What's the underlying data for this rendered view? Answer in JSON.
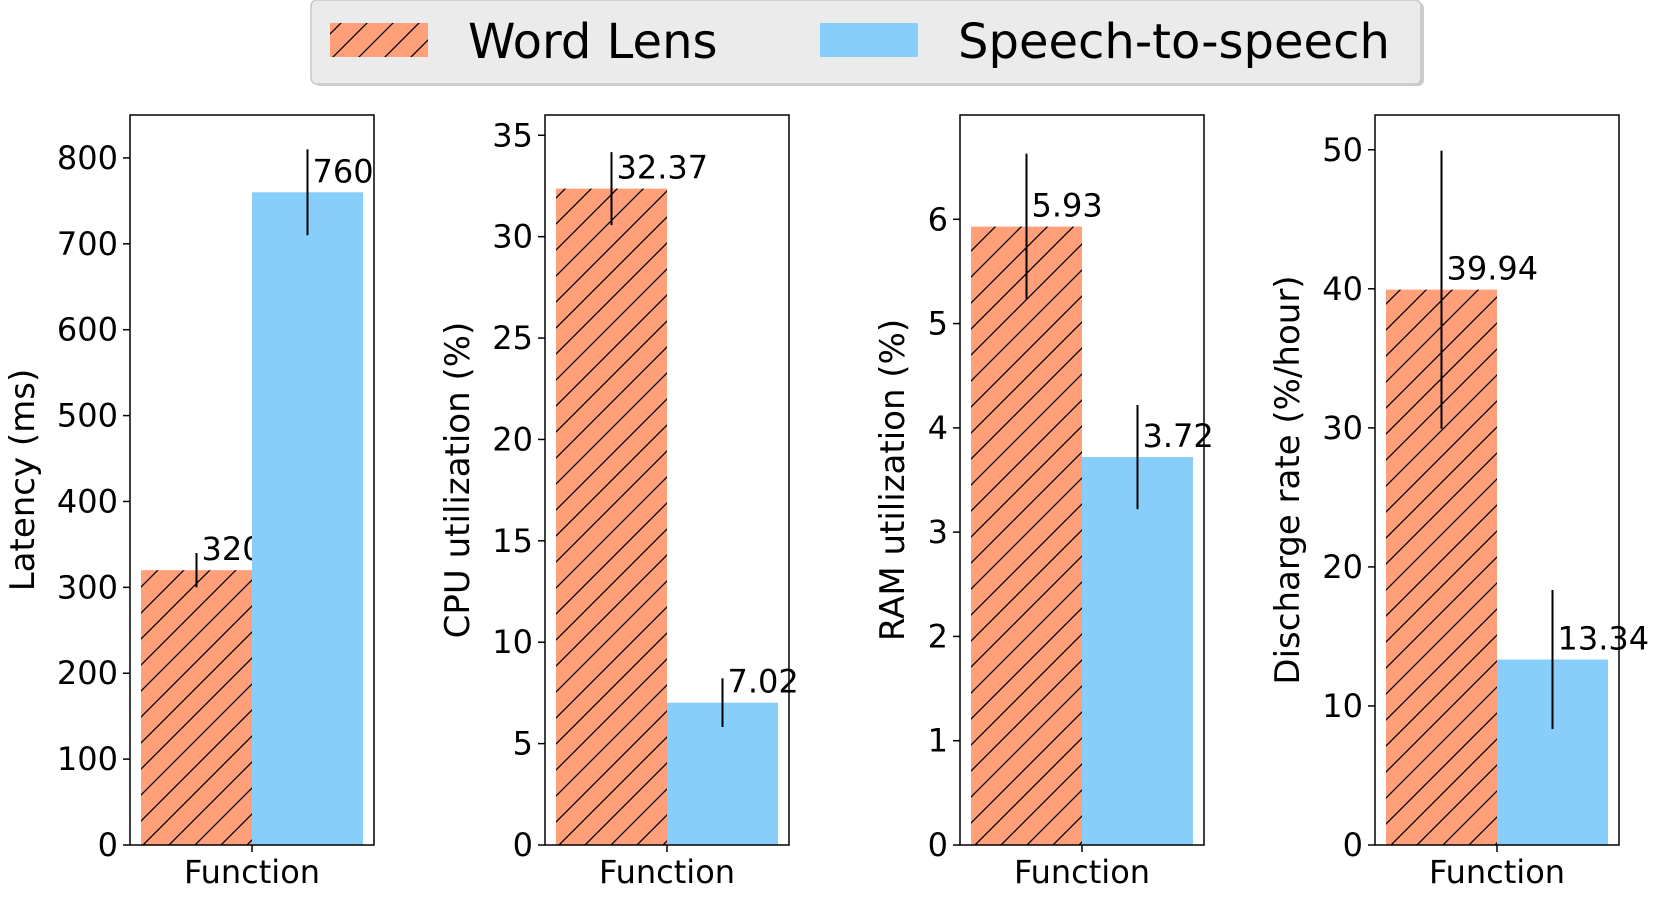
{
  "legend": {
    "placement": "top-center",
    "items": [
      {
        "label": "Word Lens",
        "color": "#FFA07A",
        "hatch": "diagonal"
      },
      {
        "label": "Speech-to-speech",
        "color": "#87CEFA",
        "hatch": "none"
      }
    ]
  },
  "colors": {
    "word_lens": "#FFA07A",
    "speech": "#87CEFA",
    "legend_bg": "#EBEBEB",
    "axes": "#000000"
  },
  "chart_data": [
    {
      "type": "bar",
      "categories": [
        "Function"
      ],
      "ylabel": "Latency (ms)",
      "ylim": [
        0,
        850
      ],
      "yticks": [
        0,
        100,
        200,
        300,
        400,
        500,
        600,
        700,
        800
      ],
      "series": [
        {
          "name": "Word Lens",
          "values": [
            320
          ],
          "error": [
            20
          ],
          "label": "320"
        },
        {
          "name": "Speech-to-speech",
          "values": [
            760
          ],
          "error": [
            50
          ],
          "label": "760"
        }
      ]
    },
    {
      "type": "bar",
      "categories": [
        "Function"
      ],
      "ylabel": "CPU utilization (%)",
      "ylim": [
        0,
        36
      ],
      "yticks": [
        0,
        5,
        10,
        15,
        20,
        25,
        30,
        35
      ],
      "series": [
        {
          "name": "Word Lens",
          "values": [
            32.37
          ],
          "error": [
            1.8
          ],
          "label": "32.37"
        },
        {
          "name": "Speech-to-speech",
          "values": [
            7.02
          ],
          "error": [
            1.2
          ],
          "label": "7.02"
        }
      ]
    },
    {
      "type": "bar",
      "categories": [
        "Function"
      ],
      "ylabel": "RAM utilization (%)",
      "ylim": [
        0,
        7
      ],
      "yticks": [
        0,
        1,
        2,
        3,
        4,
        5,
        6
      ],
      "series": [
        {
          "name": "Word Lens",
          "values": [
            5.93
          ],
          "error": [
            0.7
          ],
          "label": "5.93"
        },
        {
          "name": "Speech-to-speech",
          "values": [
            3.72
          ],
          "error": [
            0.5
          ],
          "label": "3.72"
        }
      ]
    },
    {
      "type": "bar",
      "categories": [
        "Function"
      ],
      "ylabel": "Discharge rate (%/hour)",
      "ylim": [
        0,
        52.5
      ],
      "yticks": [
        0,
        10,
        20,
        30,
        40,
        50
      ],
      "series": [
        {
          "name": "Word Lens",
          "values": [
            39.94
          ],
          "error": [
            10
          ],
          "label": "39.94"
        },
        {
          "name": "Speech-to-speech",
          "values": [
            13.34
          ],
          "error": [
            5
          ],
          "label": "13.34"
        }
      ]
    }
  ]
}
